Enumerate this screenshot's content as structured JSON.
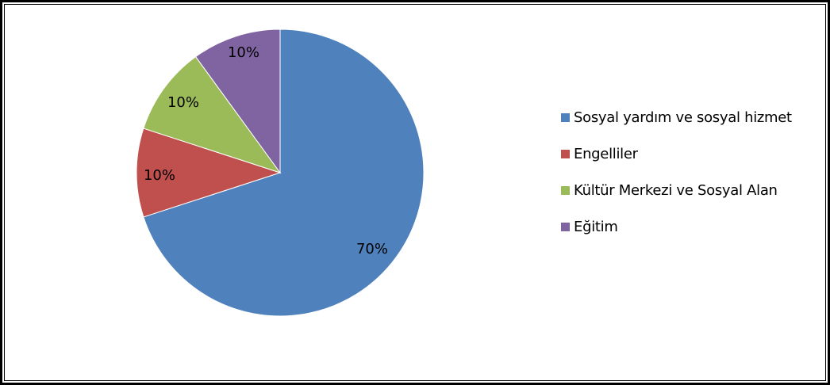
{
  "chart_data": {
    "type": "pie",
    "title": "",
    "start_angle_deg": 0,
    "direction": "clockwise",
    "legend_position": "right",
    "slices": [
      {
        "name": "Sosyal yardım ve sosyal hizmet",
        "value": 70,
        "label": "70%",
        "color": "#4F81BD"
      },
      {
        "name": "Engelliler",
        "value": 10,
        "label": "10%",
        "color": "#C0504D"
      },
      {
        "name": "Kültür Merkezi ve Sosyal Alan",
        "value": 10,
        "label": "10%",
        "color": "#9BBB59"
      },
      {
        "name": "Eğitim",
        "value": 10,
        "label": "10%",
        "color": "#8064A2"
      }
    ]
  }
}
